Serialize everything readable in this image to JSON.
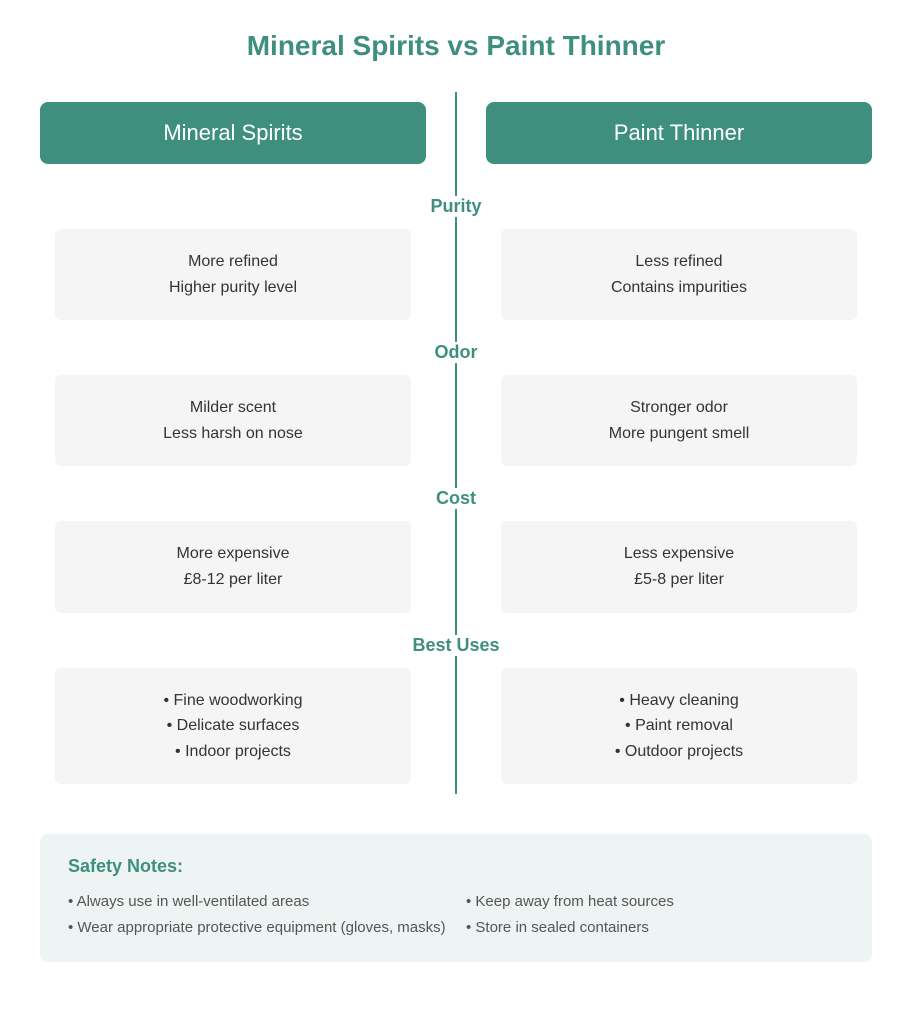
{
  "type": "infographic",
  "title": "Mineral Spirits vs Paint Thinner",
  "colors": {
    "accent": "#3f8f7f",
    "accent_header_bg": "#3f8f7f",
    "card_bg": "#f5f5f5",
    "safety_bg": "#eef4f3",
    "text_body": "#333333",
    "text_muted": "#555555",
    "divider": "#3f8f7f"
  },
  "columns": {
    "left": {
      "header": "Mineral Spirits"
    },
    "right": {
      "header": "Paint Thinner"
    }
  },
  "sections": [
    {
      "label": "Purity",
      "left": [
        "More refined",
        "Higher purity level"
      ],
      "right": [
        "Less refined",
        "Contains impurities"
      ]
    },
    {
      "label": "Odor",
      "left": [
        "Milder scent",
        "Less harsh on nose"
      ],
      "right": [
        "Stronger odor",
        "More pungent smell"
      ]
    },
    {
      "label": "Cost",
      "left": [
        "More expensive",
        "£8-12 per liter"
      ],
      "right": [
        "Less expensive",
        "£5-8 per liter"
      ]
    },
    {
      "label": "Best Uses",
      "left": [
        "• Fine woodworking",
        "• Delicate surfaces",
        "• Indoor projects"
      ],
      "right": [
        "• Heavy cleaning",
        "• Paint removal",
        "• Outdoor projects"
      ]
    }
  ],
  "safety": {
    "title": "Safety Notes:",
    "items_col1": [
      "• Always use in well-ventilated areas",
      "• Wear appropriate protective equipment (gloves, masks)"
    ],
    "items_col2": [
      "• Keep away from heat sources",
      "• Store in sealed containers"
    ]
  }
}
